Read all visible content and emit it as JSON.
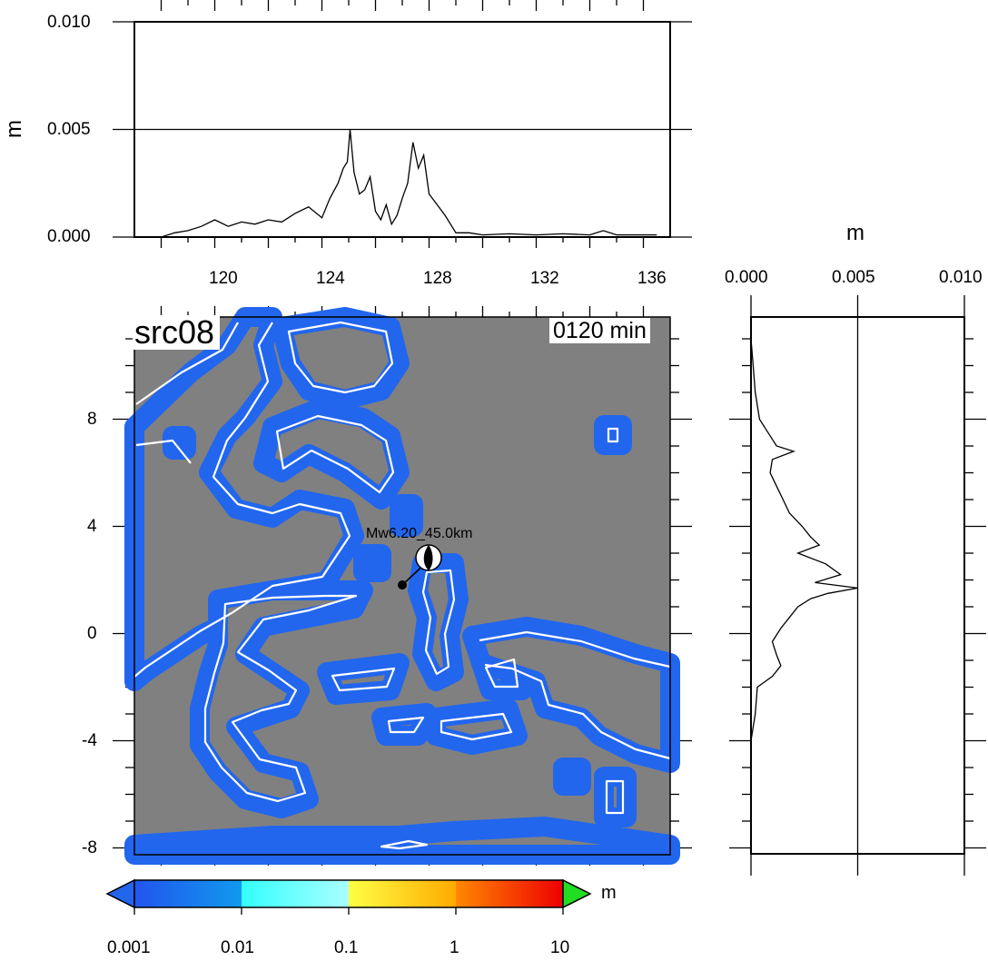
{
  "top_panel": {
    "ylabel": "m",
    "y_ticks": [
      "0.010",
      "0.005",
      "0.000"
    ],
    "x_ticks": [
      "120",
      "124",
      "128",
      "132",
      "136"
    ],
    "ylim": [
      0,
      0.01
    ],
    "xlim": [
      117,
      137
    ],
    "series": [
      [
        117.1,
        0
      ],
      [
        118.0,
        0
      ],
      [
        118.5,
        0.0002
      ],
      [
        119.0,
        0.0003
      ],
      [
        119.5,
        0.0005
      ],
      [
        120.0,
        0.0008
      ],
      [
        120.5,
        0.0005
      ],
      [
        121.0,
        0.0007
      ],
      [
        121.5,
        0.0006
      ],
      [
        122.0,
        0.0008
      ],
      [
        122.5,
        0.0007
      ],
      [
        123.0,
        0.0011
      ],
      [
        123.5,
        0.0014
      ],
      [
        124.0,
        0.0009
      ],
      [
        124.3,
        0.0018
      ],
      [
        124.6,
        0.0025
      ],
      [
        124.8,
        0.0032
      ],
      [
        124.95,
        0.0035
      ],
      [
        125.05,
        0.005
      ],
      [
        125.2,
        0.003
      ],
      [
        125.4,
        0.002
      ],
      [
        125.6,
        0.0022
      ],
      [
        125.8,
        0.0028
      ],
      [
        126.0,
        0.0012
      ],
      [
        126.2,
        0.0008
      ],
      [
        126.4,
        0.0015
      ],
      [
        126.6,
        0.0006
      ],
      [
        126.8,
        0.001
      ],
      [
        127.0,
        0.0018
      ],
      [
        127.2,
        0.0025
      ],
      [
        127.4,
        0.0044
      ],
      [
        127.6,
        0.0032
      ],
      [
        127.8,
        0.0038
      ],
      [
        128.0,
        0.002
      ],
      [
        128.3,
        0.0015
      ],
      [
        128.6,
        0.001
      ],
      [
        129.0,
        0.0002
      ],
      [
        129.5,
        0.0002
      ],
      [
        130.0,
        0.0001
      ],
      [
        131.0,
        0.00015
      ],
      [
        132.0,
        0.0001
      ],
      [
        133.0,
        0.00015
      ],
      [
        134.0,
        0.0001
      ],
      [
        134.5,
        0.0003
      ],
      [
        135.0,
        0.0001
      ],
      [
        136.5,
        0.0001
      ]
    ]
  },
  "right_panel": {
    "xlabel": "m",
    "x_ticks": [
      "0.000",
      "0.005",
      "0.010"
    ],
    "xlim": [
      0,
      0.01
    ],
    "ylim": [
      -8.2,
      11.3
    ],
    "series": [
      [
        11.0,
        0
      ],
      [
        10.0,
        0.0001
      ],
      [
        9.0,
        0.0002
      ],
      [
        8.0,
        0.0004
      ],
      [
        7.5,
        0.0008
      ],
      [
        7.0,
        0.0012
      ],
      [
        6.8,
        0.002
      ],
      [
        6.5,
        0.001
      ],
      [
        6.0,
        0.0009
      ],
      [
        5.5,
        0.0012
      ],
      [
        5.0,
        0.0015
      ],
      [
        4.5,
        0.0018
      ],
      [
        4.0,
        0.0024
      ],
      [
        3.6,
        0.0028
      ],
      [
        3.3,
        0.0032
      ],
      [
        3.0,
        0.0022
      ],
      [
        2.6,
        0.0035
      ],
      [
        2.2,
        0.0042
      ],
      [
        1.9,
        0.003
      ],
      [
        1.7,
        0.005
      ],
      [
        1.5,
        0.0036
      ],
      [
        1.3,
        0.0028
      ],
      [
        1.0,
        0.0022
      ],
      [
        0.6,
        0.0018
      ],
      [
        0.2,
        0.0014
      ],
      [
        -0.3,
        0.001
      ],
      [
        -0.8,
        0.0012
      ],
      [
        -1.2,
        0.0014
      ],
      [
        -1.6,
        0.001
      ],
      [
        -2.0,
        0.0003
      ],
      [
        -3.0,
        0.0002
      ],
      [
        -4.0,
        0
      ],
      [
        -8.0,
        0
      ]
    ]
  },
  "map": {
    "title": "src08",
    "time_label": "0120 min",
    "event_label": "Mw6.20_45.0km",
    "y_ticks": [
      "8",
      "4",
      "0",
      "-4",
      "-8"
    ],
    "epicenter": {
      "lon": 126.4,
      "lat": 1.8
    },
    "mechanism": {
      "lon": 127.4,
      "lat": 2.8
    }
  },
  "colorbar": {
    "unit": "m",
    "ticks": [
      "0.001",
      "0.01",
      "0.1",
      "1",
      "10"
    ],
    "colors": {
      "low": "#2266ee",
      "cyan": "#33ffff",
      "yellow": "#ffee33",
      "red": "#ee1100",
      "over": "#22dd22",
      "sea": "#808080",
      "coast_band": "#2266ee",
      "coastline": "#ffffff"
    }
  }
}
